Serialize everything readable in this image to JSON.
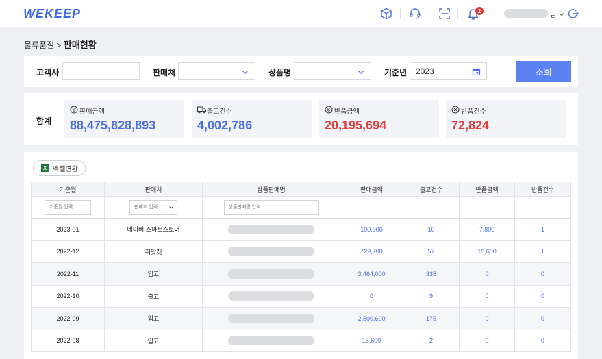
{
  "header": {
    "logo": "WEKEEP",
    "notification_count": "2",
    "user_suffix": "님"
  },
  "breadcrumb": {
    "parent": "물류품질 >",
    "current": "판매현황"
  },
  "filters": {
    "customer_label": "고객사",
    "customer_value": "",
    "seller_label": "판매처",
    "seller_value": "",
    "product_label": "상품명",
    "product_value": "",
    "year_label": "기준년",
    "year_value": "2023",
    "search_label": "조회"
  },
  "summary": {
    "title": "합계",
    "cards": [
      {
        "label": "판매금액",
        "value": "88,475,828,893",
        "icon": "dollar-circle-icon",
        "color": "#4a6ee0"
      },
      {
        "label": "출고건수",
        "value": "4,002,786",
        "icon": "truck-icon",
        "color": "#4a6ee0"
      },
      {
        "label": "반품금액",
        "value": "20,195,694",
        "icon": "dollar-circle-icon",
        "color": "#e03d3d"
      },
      {
        "label": "반품건수",
        "value": "72,824",
        "icon": "x-circle-icon",
        "color": "#e03d3d"
      }
    ]
  },
  "table": {
    "excel_label": "엑셀변환",
    "columns": [
      "기준월",
      "판매처",
      "상품판매명",
      "판매금액",
      "출고건수",
      "반품금액",
      "반품건수"
    ],
    "placeholders": {
      "month": "기준월 입력",
      "seller": "판매처 입력",
      "product": "상품판매명 입력"
    },
    "rows": [
      {
        "month": "2023-01",
        "seller": "네이버 스마트스토어",
        "sales": "100,900",
        "shipments": "10",
        "return_amount": "7,800",
        "return_count": "1"
      },
      {
        "month": "2022-12",
        "seller": "쥐맛켓",
        "sales": "729,700",
        "shipments": "57",
        "return_amount": "15,600",
        "return_count": "1"
      },
      {
        "month": "2022-11",
        "seller": "입고",
        "sales": "3,464,000",
        "shipments": "335",
        "return_amount": "0",
        "return_count": "0"
      },
      {
        "month": "2022-10",
        "seller": "출고",
        "sales": "0",
        "shipments": "9",
        "return_amount": "0",
        "return_count": "0"
      },
      {
        "month": "2022-09",
        "seller": "입고",
        "sales": "2,500,600",
        "shipments": "175",
        "return_amount": "0",
        "return_count": "0"
      },
      {
        "month": "2022-08",
        "seller": "입고",
        "sales": "15,600",
        "shipments": "2",
        "return_amount": "0",
        "return_count": "0"
      }
    ]
  }
}
